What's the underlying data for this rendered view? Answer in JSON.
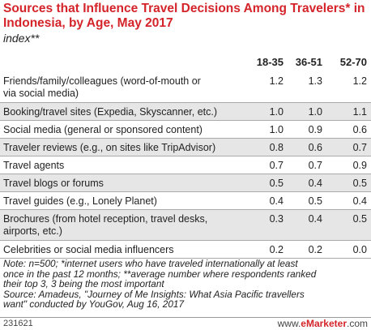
{
  "title": "Sources that Influence Travel Decisions Among Travelers* in Indonesia, by Age, May 2017",
  "subtitle": "index**",
  "footer": {
    "id": "231621",
    "brand_prefix": "www.",
    "brand_name": "eMarketer",
    "brand_suffix": ".com"
  },
  "note": "Note: n=500; *internet users who have traveled internationally at least once in the past 12 months; **average number where respondents ranked their top 3, 3 being the most important\nSource: Amadeus, \"Journey of Me Insights: What Asia Pacific travellers want\" conducted by YouGov, Aug 16, 2017",
  "chart_data": {
    "type": "table",
    "title": "Sources that Influence Travel Decisions Among Travelers* in Indonesia, by Age, May 2017",
    "subtitle": "index**",
    "columns": [
      "18-35",
      "36-51",
      "52-70"
    ],
    "rows": [
      {
        "label": "Friends/family/colleagues (word-of-mouth or via social media)",
        "values": [
          "1.2",
          "1.3",
          "1.2"
        ]
      },
      {
        "label": "Booking/travel sites (Expedia, Skyscanner, etc.)",
        "values": [
          "1.0",
          "1.0",
          "1.1"
        ]
      },
      {
        "label": "Social media (general or sponsored content)",
        "values": [
          "1.0",
          "0.9",
          "0.6"
        ]
      },
      {
        "label": "Traveler reviews (e.g., on sites like TripAdvisor)",
        "values": [
          "0.8",
          "0.6",
          "0.7"
        ]
      },
      {
        "label": "Travel agents",
        "values": [
          "0.7",
          "0.7",
          "0.9"
        ]
      },
      {
        "label": "Travel blogs or forums",
        "values": [
          "0.5",
          "0.4",
          "0.5"
        ]
      },
      {
        "label": "Travel guides (e.g., Lonely Planet)",
        "values": [
          "0.4",
          "0.5",
          "0.4"
        ]
      },
      {
        "label": "Brochures (from hotel reception, travel desks, airports, etc.)",
        "values": [
          "0.3",
          "0.4",
          "0.5"
        ]
      },
      {
        "label": "Celebrities or social media influencers",
        "values": [
          "0.2",
          "0.2",
          "0.0"
        ]
      }
    ]
  }
}
